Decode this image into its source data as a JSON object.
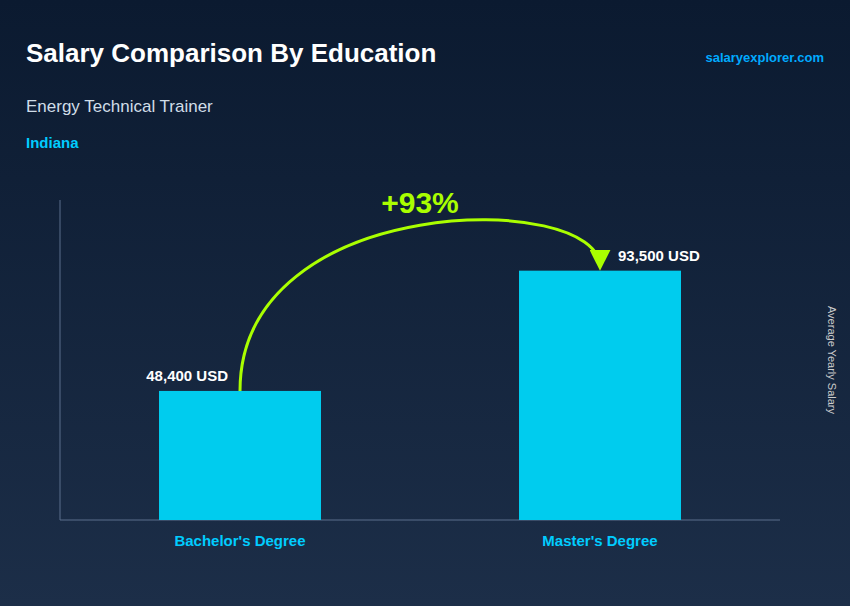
{
  "chart_data": {
    "type": "bar",
    "title": "Salary Comparison By Education",
    "subtitle": "Energy Technical Trainer",
    "annotations": [
      "Indiana",
      "salaryexplorer.com",
      "+93%"
    ],
    "ylabel": "Average Yearly Salary",
    "categories": [
      "Bachelor's Degree",
      "Master's Degree"
    ],
    "values": [
      48400,
      93500
    ],
    "value_labels": [
      "48,400 USD",
      "93,500 USD"
    ],
    "data_labels": true,
    "color": "#00ccee",
    "ylim": [
      0,
      120000
    ],
    "tick_labels": false,
    "grid": false
  }
}
